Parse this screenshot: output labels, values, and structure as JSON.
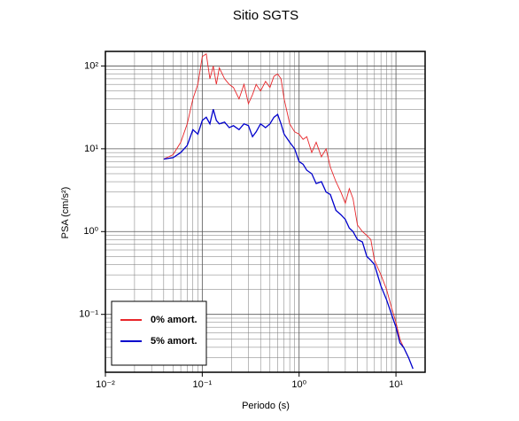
{
  "chart_data": {
    "type": "line",
    "title": "Sitio SGTS",
    "xlabel": "Periodo (s)",
    "ylabel": "PSA (cm/s²)",
    "log_x": true,
    "log_y": true,
    "grid": true,
    "legend": "lower left",
    "x": [
      0.04,
      0.05,
      0.06,
      0.07,
      0.08,
      0.09,
      0.1,
      0.11,
      0.12,
      0.13,
      0.14,
      0.15,
      0.17,
      0.19,
      0.21,
      0.24,
      0.27,
      0.3,
      0.33,
      0.36,
      0.4,
      0.45,
      0.5,
      0.55,
      0.6,
      0.65,
      0.7,
      0.8,
      0.9,
      1.0,
      1.1,
      1.2,
      1.35,
      1.5,
      1.7,
      1.9,
      2.1,
      2.4,
      2.7,
      3.0,
      3.3,
      3.6,
      4.0,
      4.5,
      5.0,
      5.5,
      6.0,
      7.0,
      8.0,
      9.0,
      10,
      11,
      12,
      13.5,
      15
    ],
    "series": [
      {
        "name": "0% amort.",
        "color": "#e8262a",
        "values": [
          7.5,
          8.5,
          12,
          20,
          40,
          60,
          130,
          140,
          70,
          100,
          60,
          95,
          70,
          60,
          55,
          40,
          60,
          35,
          45,
          60,
          50,
          65,
          55,
          75,
          80,
          70,
          40,
          20,
          16,
          15,
          13,
          14,
          9,
          12,
          8,
          10,
          6,
          4,
          3,
          2.2,
          3.3,
          2.5,
          1.2,
          1.0,
          0.9,
          0.8,
          0.45,
          0.3,
          0.2,
          0.12,
          0.08,
          0.05,
          0.04,
          0.03,
          null
        ]
      },
      {
        "name": "5% amort.",
        "color": "#0000cc",
        "values": [
          7.5,
          7.8,
          9,
          11,
          17,
          15,
          22,
          24,
          20,
          30,
          22,
          20,
          21,
          18,
          19,
          17,
          20,
          19,
          14,
          16,
          20,
          18,
          20,
          24,
          26,
          20,
          15,
          12,
          10,
          7,
          6.5,
          5.5,
          5,
          3.8,
          4,
          3,
          2.8,
          1.8,
          1.6,
          1.4,
          1.1,
          1.0,
          0.8,
          0.75,
          0.5,
          0.45,
          0.4,
          0.22,
          0.15,
          0.1,
          0.07,
          0.045,
          0.04,
          0.03,
          0.022
        ]
      }
    ],
    "xlim": [
      0.01,
      20
    ],
    "ylim": [
      0.02,
      150
    ],
    "xticks": [
      {
        "value": 0.01,
        "label": "10⁻²"
      },
      {
        "value": 0.1,
        "label": "10⁻¹"
      },
      {
        "value": 1,
        "label": "10⁰"
      },
      {
        "value": 10,
        "label": "10¹"
      }
    ],
    "yticks": [
      {
        "value": 0.1,
        "label": "10⁻¹"
      },
      {
        "value": 1,
        "label": "10⁰"
      },
      {
        "value": 10,
        "label": "10¹"
      },
      {
        "value": 100,
        "label": "10²"
      }
    ],
    "xminor_ticks": [
      0.02,
      0.03,
      0.04,
      0.05,
      0.06,
      0.07,
      0.08,
      0.09,
      0.2,
      0.3,
      0.4,
      0.5,
      0.6,
      0.7,
      0.8,
      0.9,
      2,
      3,
      4,
      5,
      6,
      7,
      8,
      9
    ],
    "yminor_ticks": [
      0.03,
      0.04,
      0.05,
      0.06,
      0.07,
      0.08,
      0.09,
      0.2,
      0.3,
      0.4,
      0.5,
      0.6,
      0.7,
      0.8,
      0.9,
      2,
      3,
      4,
      5,
      6,
      7,
      8,
      9,
      20,
      30,
      40,
      50,
      60,
      70,
      80,
      90
    ]
  }
}
